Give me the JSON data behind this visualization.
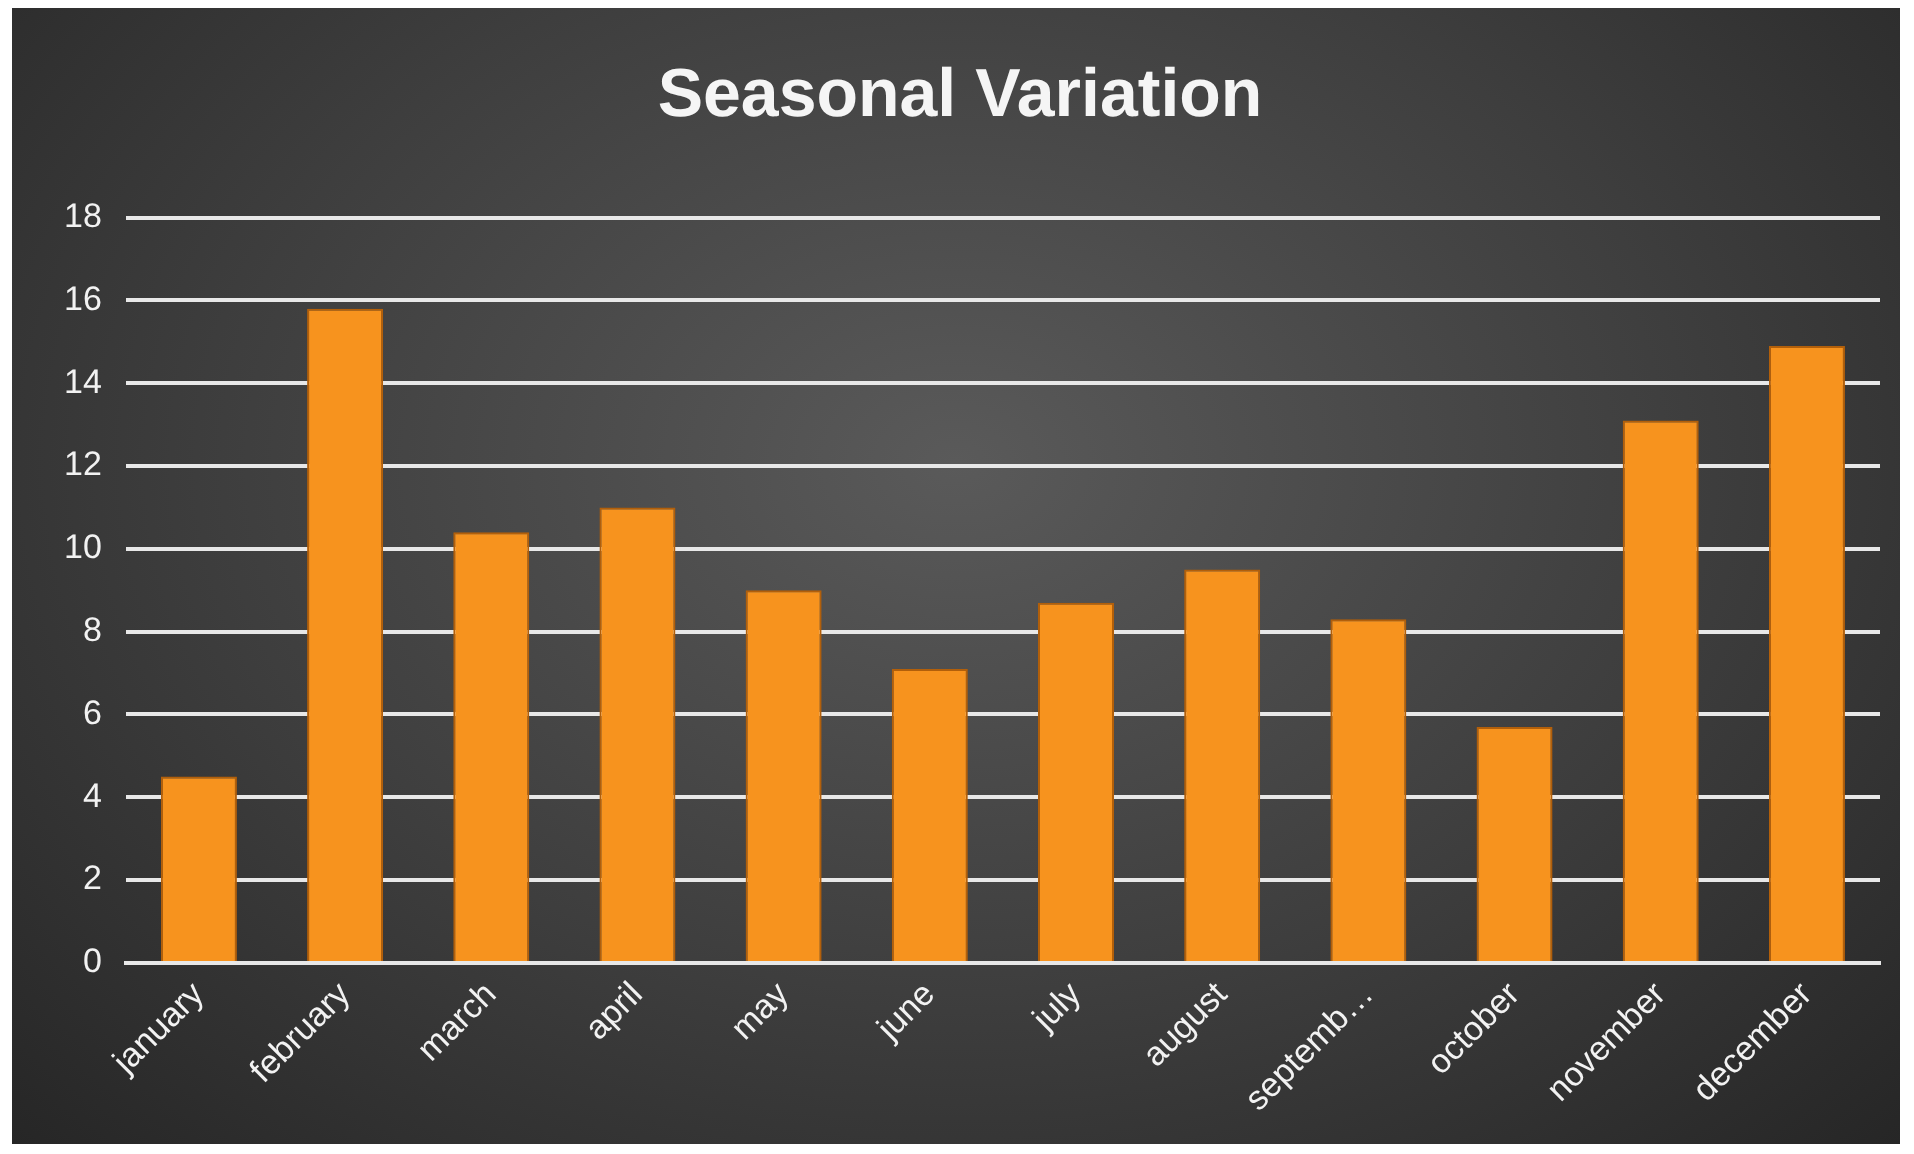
{
  "chart_data": {
    "type": "bar",
    "title": "Seasonal Variation",
    "categories": [
      "january",
      "february",
      "march",
      "april",
      "may",
      "june",
      "july",
      "august",
      "septemb…",
      "october",
      "november",
      "december"
    ],
    "values": [
      4.5,
      15.8,
      10.4,
      11.0,
      9.0,
      7.1,
      8.7,
      9.5,
      8.3,
      5.7,
      13.1,
      14.9
    ],
    "color": "#f7931e",
    "ylim": [
      0,
      18
    ],
    "yticks": [
      0,
      2,
      4,
      6,
      8,
      10,
      12,
      14,
      16,
      18
    ],
    "grid": "y",
    "legend": false
  }
}
